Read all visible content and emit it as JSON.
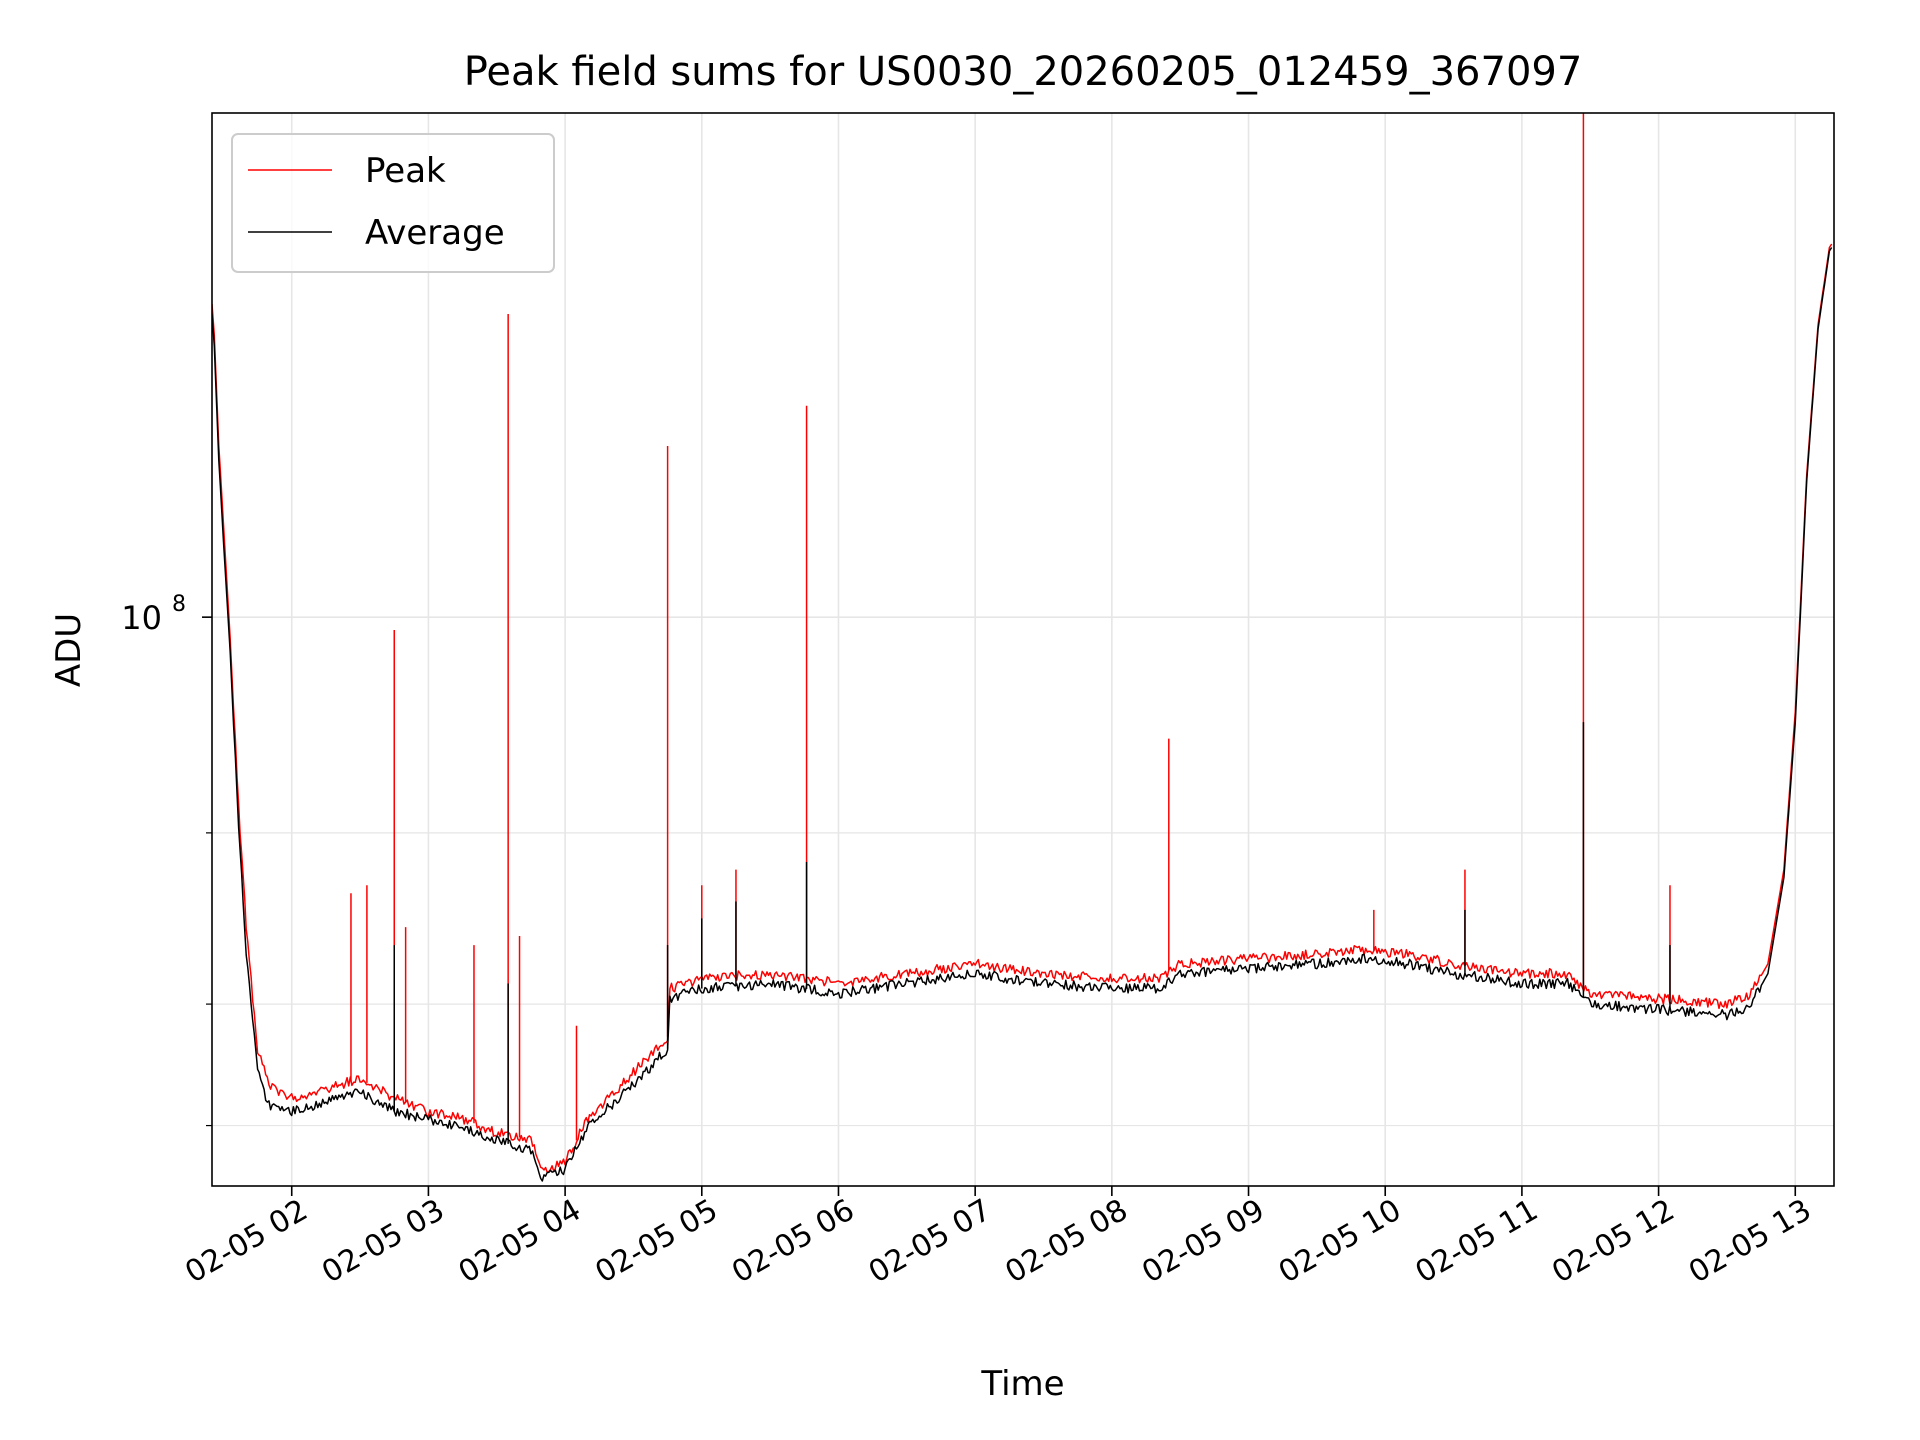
{
  "chart_data": {
    "type": "line",
    "title": "Peak field sums for US0030_20260205_012459_367097",
    "xlabel": "Time",
    "ylabel": "ADU",
    "yscale": "log",
    "ylim": [
      26000000,
      330000000
    ],
    "xlim": [
      "2026-02-05 01:25",
      "2026-02-05 13:17"
    ],
    "grid": true,
    "legend_position": "top-left",
    "x_ticks": [
      {
        "t": "2026-02-05 02:00",
        "label": "02-05 02"
      },
      {
        "t": "2026-02-05 03:00",
        "label": "02-05 03"
      },
      {
        "t": "2026-02-05 04:00",
        "label": "02-05 04"
      },
      {
        "t": "2026-02-05 05:00",
        "label": "02-05 05"
      },
      {
        "t": "2026-02-05 06:00",
        "label": "02-05 06"
      },
      {
        "t": "2026-02-05 07:00",
        "label": "02-05 07"
      },
      {
        "t": "2026-02-05 08:00",
        "label": "02-05 08"
      },
      {
        "t": "2026-02-05 09:00",
        "label": "02-05 09"
      },
      {
        "t": "2026-02-05 10:00",
        "label": "02-05 10"
      },
      {
        "t": "2026-02-05 11:00",
        "label": "02-05 11"
      },
      {
        "t": "2026-02-05 12:00",
        "label": "02-05 12"
      },
      {
        "t": "2026-02-05 13:00",
        "label": "02-05 13"
      }
    ],
    "y_major_ticks": [
      {
        "v": 100000000,
        "base": "10",
        "exp": "8"
      }
    ],
    "y_minor_ticks": [
      30000000,
      40000000,
      60000000
    ],
    "series": [
      {
        "name": "Peak",
        "color": "#ff0000",
        "points": [
          [
            "2026-02-05 01:25",
            210000000
          ],
          [
            "2026-02-05 01:26",
            195000000
          ],
          [
            "2026-02-05 01:28",
            150000000
          ],
          [
            "2026-02-05 01:30",
            125000000
          ],
          [
            "2026-02-05 01:33",
            95000000
          ],
          [
            "2026-02-05 01:36",
            68000000
          ],
          [
            "2026-02-05 01:40",
            48000000
          ],
          [
            "2026-02-05 01:45",
            36000000
          ],
          [
            "2026-02-05 01:50",
            33000000
          ],
          [
            "2026-02-05 02:00",
            32000000
          ],
          [
            "2026-02-05 02:10",
            32500000
          ],
          [
            "2026-02-05 02:20",
            33000000
          ],
          [
            "2026-02-05 02:30",
            33500000
          ],
          [
            "2026-02-05 02:45",
            32000000
          ],
          [
            "2026-02-05 03:00",
            31000000
          ],
          [
            "2026-02-05 03:15",
            30500000
          ],
          [
            "2026-02-05 03:30",
            29500000
          ],
          [
            "2026-02-05 03:45",
            29000000
          ],
          [
            "2026-02-05 03:50",
            27000000
          ],
          [
            "2026-02-05 04:00",
            27500000
          ],
          [
            "2026-02-05 04:10",
            30500000
          ],
          [
            "2026-02-05 04:30",
            34000000
          ],
          [
            "2026-02-05 04:45",
            37000000
          ],
          [
            "2026-02-05 04:46",
            41500000
          ],
          [
            "2026-02-05 05:00",
            42500000
          ],
          [
            "2026-02-05 05:30",
            43000000
          ],
          [
            "2026-02-05 06:00",
            42000000
          ],
          [
            "2026-02-05 06:30",
            43000000
          ],
          [
            "2026-02-05 07:00",
            44000000
          ],
          [
            "2026-02-05 07:30",
            43000000
          ],
          [
            "2026-02-05 08:00",
            42500000
          ],
          [
            "2026-02-05 08:20",
            42500000
          ],
          [
            "2026-02-05 08:30",
            44000000
          ],
          [
            "2026-02-05 09:00",
            44500000
          ],
          [
            "2026-02-05 09:30",
            45000000
          ],
          [
            "2026-02-05 09:50",
            45500000
          ],
          [
            "2026-02-05 10:10",
            45000000
          ],
          [
            "2026-02-05 10:30",
            44000000
          ],
          [
            "2026-02-05 10:45",
            43500000
          ],
          [
            "2026-02-05 11:00",
            43000000
          ],
          [
            "2026-02-05 11:20",
            43000000
          ],
          [
            "2026-02-05 11:30",
            41000000
          ],
          [
            "2026-02-05 12:00",
            40500000
          ],
          [
            "2026-02-05 12:30",
            40000000
          ],
          [
            "2026-02-05 12:40",
            40800000
          ],
          [
            "2026-02-05 12:48",
            44000000
          ],
          [
            "2026-02-05 12:55",
            55000000
          ],
          [
            "2026-02-05 13:00",
            80000000
          ],
          [
            "2026-02-05 13:05",
            140000000
          ],
          [
            "2026-02-05 13:10",
            200000000
          ],
          [
            "2026-02-05 13:15",
            240000000
          ],
          [
            "2026-02-05 13:16",
            242000000
          ]
        ],
        "spikes": [
          [
            "2026-02-05 02:26",
            52000000
          ],
          [
            "2026-02-05 02:33",
            53000000
          ],
          [
            "2026-02-05 02:45",
            97000000
          ],
          [
            "2026-02-05 02:50",
            48000000
          ],
          [
            "2026-02-05 03:20",
            46000000
          ],
          [
            "2026-02-05 03:35",
            205000000
          ],
          [
            "2026-02-05 03:40",
            47000000
          ],
          [
            "2026-02-05 04:05",
            38000000
          ],
          [
            "2026-02-05 04:45",
            150000000
          ],
          [
            "2026-02-05 05:00",
            53000000
          ],
          [
            "2026-02-05 05:15",
            55000000
          ],
          [
            "2026-02-05 05:46",
            165000000
          ],
          [
            "2026-02-05 08:25",
            75000000
          ],
          [
            "2026-02-05 09:55",
            50000000
          ],
          [
            "2026-02-05 10:35",
            55000000
          ],
          [
            "2026-02-05 11:27",
            330000000
          ],
          [
            "2026-02-05 12:05",
            53000000
          ]
        ]
      },
      {
        "name": "Average",
        "color": "#000000",
        "points": [
          [
            "2026-02-05 01:25",
            205000000
          ],
          [
            "2026-02-05 01:26",
            190000000
          ],
          [
            "2026-02-05 01:28",
            145000000
          ],
          [
            "2026-02-05 01:30",
            120000000
          ],
          [
            "2026-02-05 01:33",
            92000000
          ],
          [
            "2026-02-05 01:36",
            65000000
          ],
          [
            "2026-02-05 01:40",
            45000000
          ],
          [
            "2026-02-05 01:45",
            34000000
          ],
          [
            "2026-02-05 01:50",
            31500000
          ],
          [
            "2026-02-05 02:00",
            31000000
          ],
          [
            "2026-02-05 02:10",
            31500000
          ],
          [
            "2026-02-05 02:20",
            32000000
          ],
          [
            "2026-02-05 02:30",
            32500000
          ],
          [
            "2026-02-05 02:45",
            31000000
          ],
          [
            "2026-02-05 03:00",
            30500000
          ],
          [
            "2026-02-05 03:15",
            29800000
          ],
          [
            "2026-02-05 03:30",
            29000000
          ],
          [
            "2026-02-05 03:45",
            28200000
          ],
          [
            "2026-02-05 03:50",
            26500000
          ],
          [
            "2026-02-05 04:00",
            27000000
          ],
          [
            "2026-02-05 04:10",
            30000000
          ],
          [
            "2026-02-05 04:30",
            33000000
          ],
          [
            "2026-02-05 04:45",
            36000000
          ],
          [
            "2026-02-05 04:46",
            40500000
          ],
          [
            "2026-02-05 05:00",
            41500000
          ],
          [
            "2026-02-05 05:30",
            42000000
          ],
          [
            "2026-02-05 06:00",
            41000000
          ],
          [
            "2026-02-05 06:30",
            42000000
          ],
          [
            "2026-02-05 07:00",
            43000000
          ],
          [
            "2026-02-05 07:30",
            42000000
          ],
          [
            "2026-02-05 08:00",
            41500000
          ],
          [
            "2026-02-05 08:20",
            41500000
          ],
          [
            "2026-02-05 08:30",
            43000000
          ],
          [
            "2026-02-05 09:00",
            43500000
          ],
          [
            "2026-02-05 09:30",
            44000000
          ],
          [
            "2026-02-05 09:50",
            44500000
          ],
          [
            "2026-02-05 10:10",
            44000000
          ],
          [
            "2026-02-05 10:30",
            43000000
          ],
          [
            "2026-02-05 10:45",
            42500000
          ],
          [
            "2026-02-05 11:00",
            42000000
          ],
          [
            "2026-02-05 11:20",
            42000000
          ],
          [
            "2026-02-05 11:30",
            40000000
          ],
          [
            "2026-02-05 12:00",
            39500000
          ],
          [
            "2026-02-05 12:30",
            39000000
          ],
          [
            "2026-02-05 12:40",
            39800000
          ],
          [
            "2026-02-05 12:48",
            43000000
          ],
          [
            "2026-02-05 12:55",
            54000000
          ],
          [
            "2026-02-05 13:00",
            78000000
          ],
          [
            "2026-02-05 13:05",
            138000000
          ],
          [
            "2026-02-05 13:10",
            198000000
          ],
          [
            "2026-02-05 13:15",
            238000000
          ],
          [
            "2026-02-05 13:16",
            240000000
          ]
        ],
        "spikes": [
          [
            "2026-02-05 02:45",
            46000000
          ],
          [
            "2026-02-05 03:35",
            42000000
          ],
          [
            "2026-02-05 04:45",
            46000000
          ],
          [
            "2026-02-05 05:00",
            49000000
          ],
          [
            "2026-02-05 05:15",
            51000000
          ],
          [
            "2026-02-05 05:46",
            56000000
          ],
          [
            "2026-02-05 10:35",
            50000000
          ],
          [
            "2026-02-05 11:27",
            78000000
          ],
          [
            "2026-02-05 12:05",
            46000000
          ]
        ]
      }
    ]
  }
}
